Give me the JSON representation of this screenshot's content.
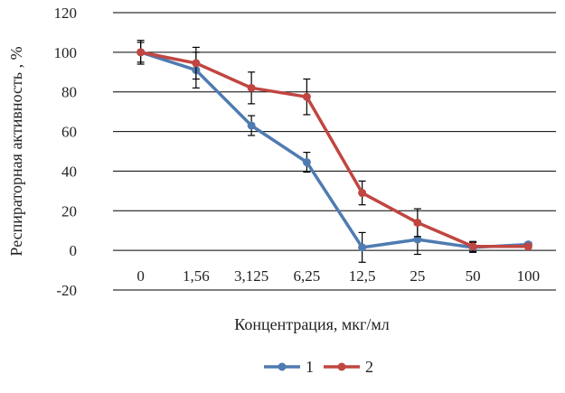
{
  "chart_data": {
    "type": "line",
    "title": "",
    "xlabel": "Концентрация, мкг/мл",
    "ylabel": "Респираторная активность , %",
    "ylim": [
      -20,
      120
    ],
    "yticks": [
      -20,
      0,
      20,
      40,
      60,
      80,
      100,
      120
    ],
    "grid": true,
    "legend_position": "bottom",
    "categories": [
      "0",
      "1,56",
      "3,125",
      "6,25",
      "12,5",
      "25",
      "50",
      "100"
    ],
    "series": [
      {
        "name": "1",
        "color": "#4f7bb1",
        "values": [
          100,
          91,
          63,
          44.5,
          1.5,
          5.5,
          1.5,
          3
        ],
        "error": [
          5,
          9,
          5,
          5,
          7.5,
          7.5,
          2.5,
          1
        ]
      },
      {
        "name": "2",
        "color": "#c04641",
        "values": [
          100,
          94.5,
          82,
          77.5,
          29,
          14,
          2,
          2
        ],
        "error": [
          6,
          8,
          8,
          9,
          6,
          7,
          2.5,
          1
        ]
      }
    ]
  }
}
